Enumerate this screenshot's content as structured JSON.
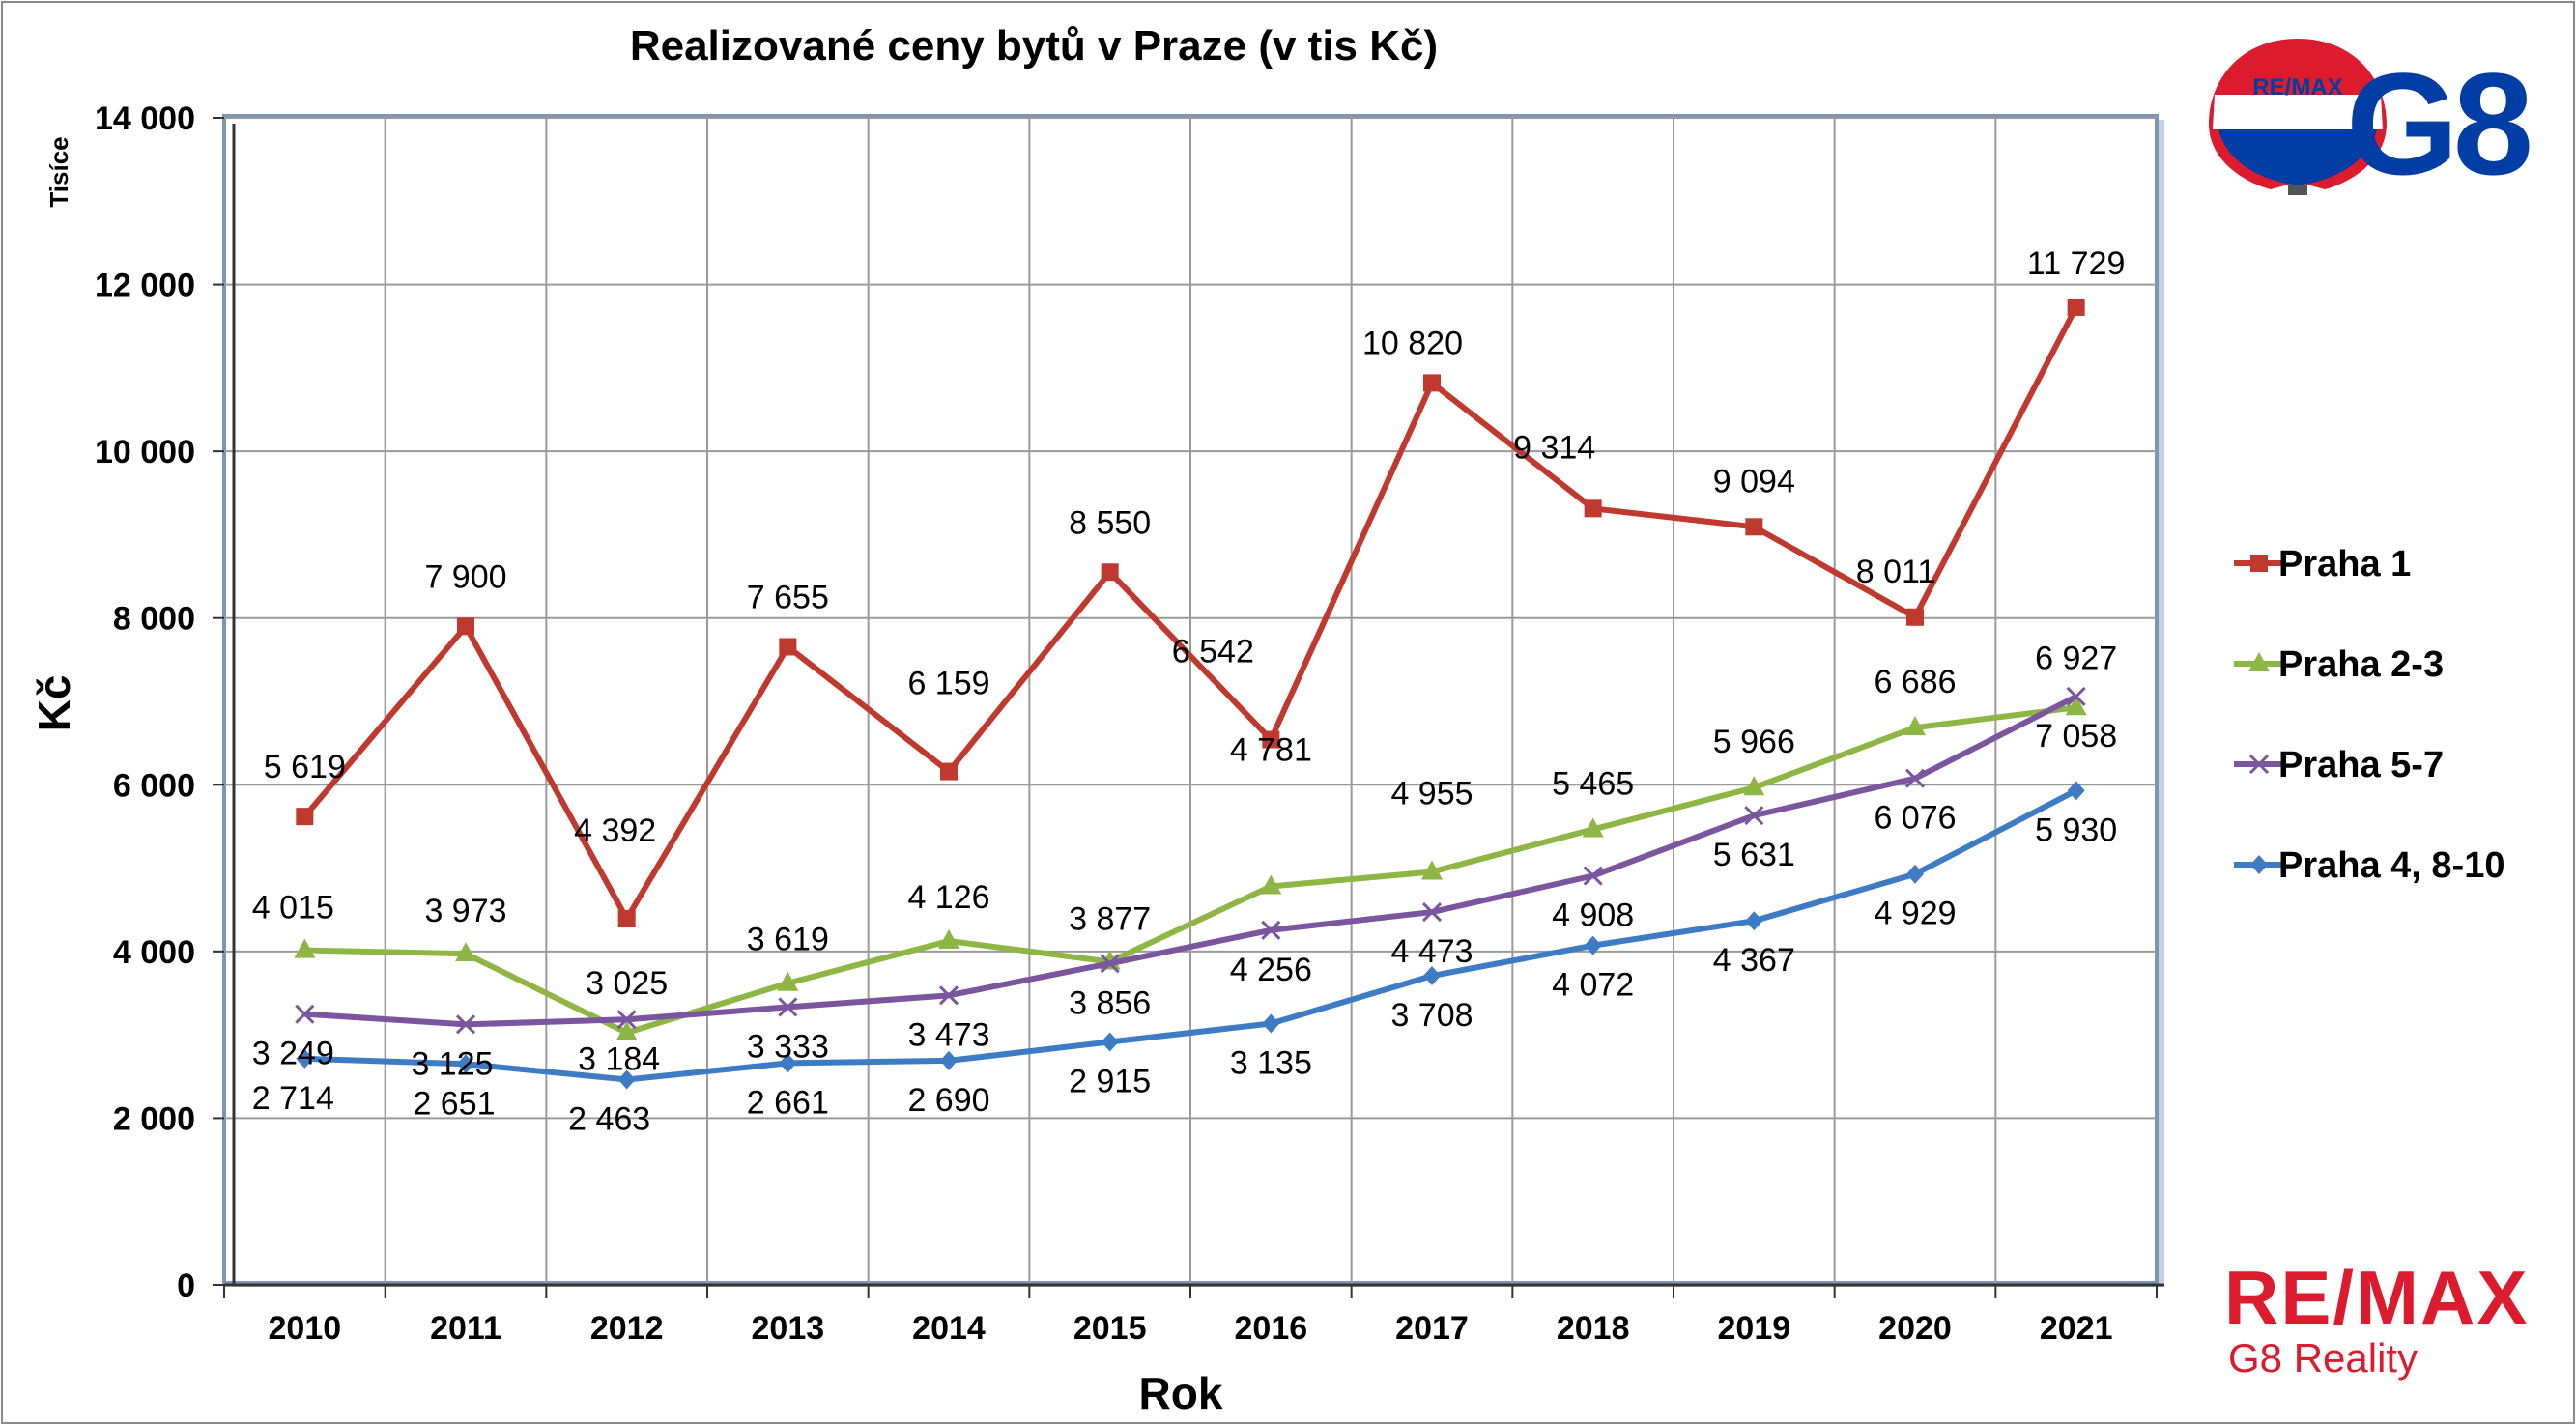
{
  "chart_data": {
    "type": "line",
    "title": "Realizované ceny bytů v Praze (v tis Kč)",
    "xlabel": "Rok",
    "ylabel": "Kč",
    "yunit_label": "Tisíce",
    "categories": [
      "2010",
      "2011",
      "2012",
      "2013",
      "2014",
      "2015",
      "2016",
      "2017",
      "2018",
      "2019",
      "2020",
      "2021"
    ],
    "ylim": [
      0,
      14000
    ],
    "yticks": [
      0,
      2000,
      4000,
      6000,
      8000,
      10000,
      12000,
      14000
    ],
    "ytick_labels": [
      "0",
      "2 000",
      "4 000",
      "6 000",
      "8 000",
      "10 000",
      "12 000",
      "14 000"
    ],
    "grid": true,
    "legend_position": "right",
    "series": [
      {
        "name": "Praha 1",
        "color": "#C0392F",
        "marker": "square",
        "values": [
          5619,
          7900,
          4392,
          7655,
          6159,
          8550,
          6542,
          10820,
          9314,
          9094,
          8011,
          11729
        ],
        "labels": [
          "5 619",
          "7 900",
          "4 392",
          "7 655",
          "6 159",
          "8 550",
          "6 542",
          "10 820",
          "9 314",
          "9 094",
          "8 011",
          "11 729"
        ]
      },
      {
        "name": "Praha 2-3",
        "color": "#8DB645",
        "marker": "triangle",
        "values": [
          4015,
          3973,
          3025,
          3619,
          4126,
          3877,
          4781,
          4955,
          5465,
          5966,
          6686,
          6927
        ],
        "labels": [
          "4 015",
          "3 973",
          "3 025",
          "3 619",
          "4 126",
          "3 877",
          "4 781",
          "4 955",
          "5 465",
          "5 966",
          "6 686",
          "6 927"
        ]
      },
      {
        "name": "Praha 5-7",
        "color": "#7B559E",
        "marker": "cross",
        "values": [
          3249,
          3125,
          3184,
          3333,
          3473,
          3856,
          4256,
          4473,
          4908,
          5631,
          6076,
          7058
        ],
        "labels": [
          "3 249",
          "3 125",
          "3 184",
          "3 333",
          "3 473",
          "3 856",
          "4 256",
          "4 473",
          "4 908",
          "5 631",
          "6 076",
          "7 058"
        ]
      },
      {
        "name": "Praha 4, 8-10",
        "color": "#3D7CC4",
        "marker": "diamond",
        "values": [
          2714,
          2651,
          2463,
          2661,
          2690,
          2915,
          3135,
          3708,
          4072,
          4367,
          4929,
          5930
        ],
        "labels": [
          "2 714",
          "2 651",
          "2 463",
          "2 661",
          "2 690",
          "2 915",
          "3 135",
          "3 708",
          "4 072",
          "4 367",
          "4 929",
          "5 930"
        ]
      }
    ]
  },
  "branding": {
    "balloon_text": "RE/MAX",
    "g8_text": "G8",
    "remax_text": "RE/MAX",
    "reality_text": "G8 Reality",
    "red": "#DC1C2E",
    "blue": "#003DA5"
  }
}
